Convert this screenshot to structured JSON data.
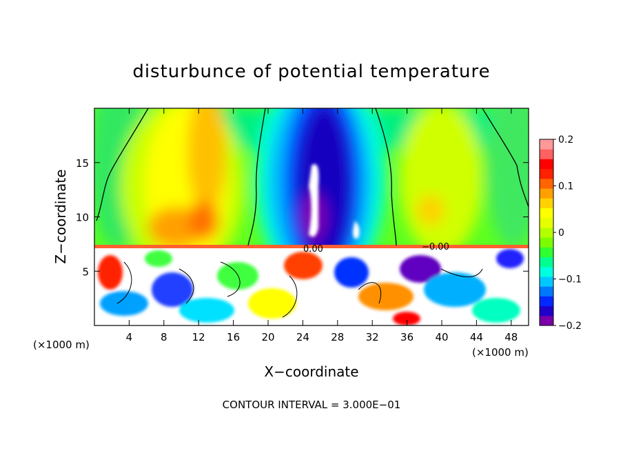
{
  "chart_data": {
    "type": "heatmap",
    "title": "disturbunce of potential temperature",
    "xlabel": "X−coordinate",
    "ylabel": "Z−coordinate",
    "x_unit_left": "(×1000 m)",
    "x_unit_right": "(×1000 m)",
    "x_range": [
      0,
      50
    ],
    "y_range": [
      0,
      20
    ],
    "x_ticks": [
      4,
      8,
      12,
      16,
      20,
      24,
      28,
      32,
      36,
      40,
      44,
      48
    ],
    "x_tick_labels": [
      "4",
      "8",
      "12",
      "16",
      "20",
      "24",
      "28",
      "32",
      "36",
      "40",
      "44",
      "48"
    ],
    "y_ticks": [
      5,
      10,
      15
    ],
    "y_tick_labels": [
      "5",
      "10",
      "15"
    ],
    "colorbar": {
      "range": [
        -0.2,
        0.2
      ],
      "ticks": [
        0.2,
        0.1,
        0,
        -0.1,
        -0.2
      ],
      "tick_labels": [
        "0.2",
        "0.1",
        "0",
        "−0.1",
        "−0.2"
      ],
      "colors": [
        "#7a00a8",
        "#2000c8",
        "#0028ff",
        "#0078ff",
        "#00c8ff",
        "#00ffe0",
        "#00ff90",
        "#30ff30",
        "#7cfc00",
        "#b4ff00",
        "#e6ff00",
        "#ffff00",
        "#ffd200",
        "#ffa000",
        "#ff6400",
        "#ff2000",
        "#ff0000",
        "#ff6060",
        "#ff9898"
      ]
    },
    "contour_labels": [
      "0.00",
      "−0.00"
    ],
    "footer": "CONTOUR INTERVAL = 3.000E−01"
  }
}
